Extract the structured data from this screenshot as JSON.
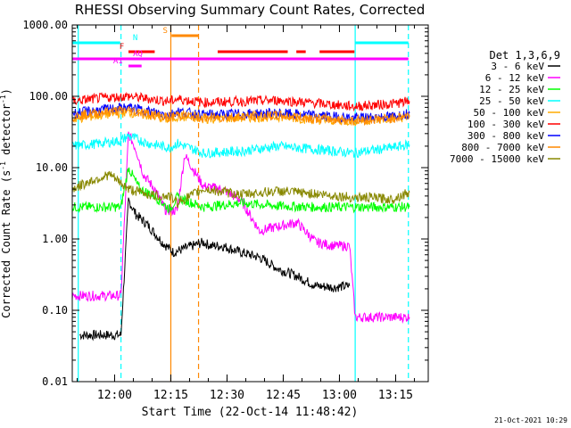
{
  "footer_date": "21-Oct-2021 10:29",
  "chart_data": {
    "type": "line",
    "title": "RHESSI Observing Summary Count Rates, Corrected",
    "xlabel": "Start Time (22-Oct-14 11:48:42)",
    "ylabel_main": "Corrected Count Rate (s",
    "ylabel_sup": "-1",
    "ylabel_mid": " detector",
    "ylabel_sup2": "-1",
    "ylabel_end": ")",
    "y_scale": "log",
    "ylim": [
      0.01,
      1000
    ],
    "xlim_minutes": [
      0,
      95
    ],
    "x_tick_labels": [
      "12:00",
      "12:15",
      "12:30",
      "12:45",
      "13:00",
      "13:15"
    ],
    "x_tick_minutes": [
      11.3,
      26.3,
      41.3,
      56.3,
      71.3,
      86.3
    ],
    "y_tick_labels": [
      "0.01",
      "0.10",
      "1.00",
      "10.00",
      "100.00",
      "1000.00"
    ],
    "legend_title": "Det 1,3,6,9",
    "legend_position": "right",
    "series": [
      {
        "name": "3 - 6 keV",
        "color": "#000000",
        "points": [
          [
            2,
            0.045
          ],
          [
            13,
            0.045
          ],
          [
            15,
            3.5
          ],
          [
            17,
            2.2
          ],
          [
            20,
            1.6
          ],
          [
            22,
            1.2
          ],
          [
            24,
            0.9
          ],
          [
            27,
            0.65
          ],
          [
            35,
            0.9
          ],
          [
            37,
            0.8
          ],
          [
            40,
            0.8
          ],
          [
            45,
            0.65
          ],
          [
            50,
            0.55
          ],
          [
            55,
            0.38
          ],
          [
            60,
            0.3
          ],
          [
            65,
            0.22
          ],
          [
            70,
            0.21
          ],
          [
            74,
            0.22
          ]
        ]
      },
      {
        "name": "6 - 12 keV",
        "color": "#ff00ff",
        "points": [
          [
            0,
            0.16
          ],
          [
            13,
            0.16
          ],
          [
            15,
            30
          ],
          [
            17,
            18
          ],
          [
            19,
            8
          ],
          [
            22,
            5
          ],
          [
            25,
            2.5
          ],
          [
            28,
            2.5
          ],
          [
            30,
            15
          ],
          [
            35,
            5.5
          ],
          [
            40,
            5
          ],
          [
            45,
            3.5
          ],
          [
            50,
            1.3
          ],
          [
            55,
            1.5
          ],
          [
            60,
            1.7
          ],
          [
            65,
            0.9
          ],
          [
            70,
            0.8
          ],
          [
            74,
            0.8
          ],
          [
            75.5,
            0.08
          ],
          [
            90,
            0.08
          ]
        ]
      },
      {
        "name": "12 - 25 keV",
        "color": "#00ff00",
        "points": [
          [
            0,
            2.8
          ],
          [
            13,
            2.8
          ],
          [
            15,
            10
          ],
          [
            18,
            5
          ],
          [
            22,
            4
          ],
          [
            26,
            2.6
          ],
          [
            28,
            3.8
          ],
          [
            35,
            2.8
          ],
          [
            45,
            3.2
          ],
          [
            55,
            2.9
          ],
          [
            65,
            2.8
          ],
          [
            75,
            2.8
          ],
          [
            85,
            2.8
          ],
          [
            90,
            2.8
          ]
        ]
      },
      {
        "name": "25 - 50 keV",
        "color": "#00ffff",
        "points": [
          [
            0,
            20
          ],
          [
            8,
            22
          ],
          [
            13,
            24
          ],
          [
            15,
            28
          ],
          [
            20,
            22
          ],
          [
            26,
            19
          ],
          [
            28,
            22
          ],
          [
            35,
            16
          ],
          [
            45,
            17
          ],
          [
            55,
            20
          ],
          [
            65,
            18
          ],
          [
            75,
            16
          ],
          [
            85,
            19
          ],
          [
            90,
            21
          ]
        ]
      },
      {
        "name": "50 - 100 keV",
        "color": "#ffaa00",
        "points": [
          [
            0,
            48
          ],
          [
            8,
            55
          ],
          [
            15,
            60
          ],
          [
            22,
            52
          ],
          [
            26,
            47
          ],
          [
            28,
            52
          ],
          [
            35,
            48
          ],
          [
            45,
            50
          ],
          [
            55,
            52
          ],
          [
            65,
            47
          ],
          [
            75,
            45
          ],
          [
            85,
            48
          ],
          [
            90,
            52
          ]
        ]
      },
      {
        "name": "100 - 300 keV",
        "color": "#ff0000",
        "points": [
          [
            0,
            85
          ],
          [
            8,
            95
          ],
          [
            15,
            100
          ],
          [
            22,
            90
          ],
          [
            26,
            85
          ],
          [
            28,
            92
          ],
          [
            35,
            82
          ],
          [
            45,
            85
          ],
          [
            55,
            88
          ],
          [
            65,
            80
          ],
          [
            75,
            72
          ],
          [
            85,
            78
          ],
          [
            90,
            85
          ]
        ]
      },
      {
        "name": "300 - 800 keV",
        "color": "#0000ff",
        "points": [
          [
            0,
            58
          ],
          [
            8,
            65
          ],
          [
            15,
            70
          ],
          [
            22,
            60
          ],
          [
            26,
            55
          ],
          [
            28,
            62
          ],
          [
            35,
            55
          ],
          [
            45,
            57
          ],
          [
            55,
            58
          ],
          [
            65,
            54
          ],
          [
            75,
            50
          ],
          [
            85,
            52
          ],
          [
            90,
            58
          ]
        ]
      },
      {
        "name": "800 - 7000 keV",
        "color": "#ff8800",
        "points": [
          [
            0,
            52
          ],
          [
            8,
            60
          ],
          [
            15,
            64
          ],
          [
            22,
            55
          ],
          [
            26,
            50
          ],
          [
            28,
            56
          ],
          [
            35,
            50
          ],
          [
            45,
            52
          ],
          [
            55,
            54
          ],
          [
            65,
            49
          ],
          [
            75,
            46
          ],
          [
            85,
            49
          ],
          [
            90,
            54
          ]
        ]
      },
      {
        "name": "7000 - 15000 keV",
        "color": "#888800",
        "points": [
          [
            0,
            5
          ],
          [
            5,
            6.5
          ],
          [
            10,
            8
          ],
          [
            13,
            6
          ],
          [
            15,
            5
          ],
          [
            22,
            4
          ],
          [
            26,
            4
          ],
          [
            28,
            3.2
          ],
          [
            35,
            5
          ],
          [
            45,
            4.2
          ],
          [
            55,
            4.7
          ],
          [
            65,
            4.3
          ],
          [
            75,
            3.8
          ],
          [
            80,
            3.8
          ],
          [
            85,
            3.6
          ],
          [
            90,
            4.5
          ]
        ]
      }
    ],
    "vertical_markers": [
      {
        "minute": 1.6,
        "color": "#00ffff",
        "style": "solid"
      },
      {
        "minute": 13.0,
        "color": "#00ffff",
        "style": "dashed"
      },
      {
        "minute": 26.3,
        "color": "#ff8800",
        "style": "solid"
      },
      {
        "minute": 33.7,
        "color": "#ff8800",
        "style": "dashed"
      },
      {
        "minute": 75.5,
        "color": "#00ffff",
        "style": "solid"
      },
      {
        "minute": 89.7,
        "color": "#00ffff",
        "style": "dashed"
      }
    ],
    "flags": [
      {
        "label": "N",
        "color": "#00ffff",
        "y": 48,
        "segments": [
          [
            0,
            12.8
          ],
          [
            75.5,
            89.7
          ]
        ],
        "label_minute": 16.8
      },
      {
        "label": "S",
        "color": "#ff8800",
        "y": 40,
        "segments": [
          [
            26.5,
            33.8
          ]
        ],
        "label_minute": 24.8
      },
      {
        "label": "F",
        "color": "#ff0000",
        "y": 58,
        "segments": [
          [
            15,
            22
          ],
          [
            38.8,
            57.5
          ],
          [
            59.8,
            62.3
          ],
          [
            66,
            75.3
          ]
        ],
        "label_minute": 13.2
      },
      {
        "label": "AQ",
        "color": "#ff00ff",
        "y": 66,
        "segments": [
          [
            0,
            89.7
          ]
        ],
        "label_minute": 17.5
      },
      {
        "label": "A1",
        "color": "#ff00ff",
        "y": 74,
        "segments": [
          [
            15,
            18.5
          ]
        ],
        "label_minute": 12.2
      }
    ]
  }
}
